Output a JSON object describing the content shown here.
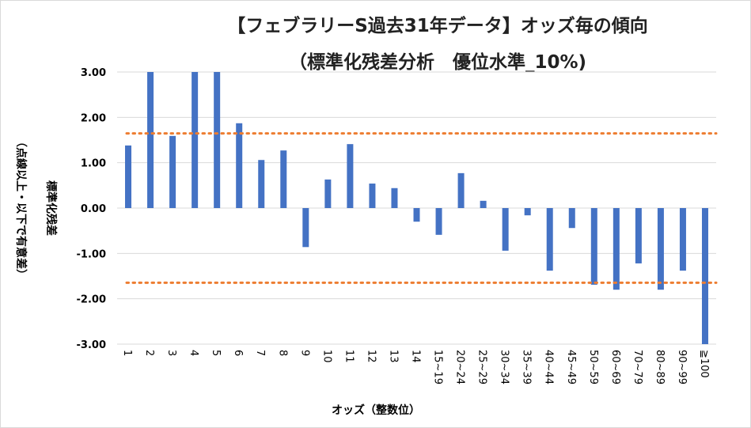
{
  "chart_data": {
    "type": "bar",
    "title": "【フェブラリーS過去31年データ】オッズ毎の傾向",
    "subtitle": "（標準化残差分析　優位水準_10%)",
    "xlabel": "オッズ（整数位）",
    "ylabel": "標準化残差",
    "ylabel_note": "（点線以上・以下で有意差）",
    "ylim": [
      -3,
      3
    ],
    "yticks": [
      "3.00",
      "2.00",
      "1.00",
      "0.00",
      "-1.00",
      "-2.00",
      "-3.00"
    ],
    "ytick_values": [
      3,
      2,
      1,
      0,
      -1,
      -2,
      -3
    ],
    "categories": [
      "1",
      "2",
      "3",
      "4",
      "5",
      "6",
      "7",
      "8",
      "9",
      "10",
      "11",
      "12",
      "13",
      "14",
      "15~19",
      "20~24",
      "25~29",
      "30~34",
      "35~39",
      "40~44",
      "45~49",
      "50~59",
      "60~69",
      "70~79",
      "80~89",
      "90~99",
      "≧100"
    ],
    "values": [
      1.38,
      3.0,
      1.59,
      3.0,
      3.0,
      1.87,
      1.06,
      1.27,
      -0.86,
      0.63,
      1.41,
      0.54,
      0.44,
      -0.3,
      -0.59,
      0.77,
      0.16,
      -0.94,
      -0.16,
      -1.38,
      -0.44,
      -1.69,
      -1.8,
      -1.22,
      -1.8,
      -1.38,
      -3.0
    ],
    "threshold_lines": [
      1.645,
      -1.645
    ],
    "grid": true,
    "colors": {
      "bar": "#4472c4",
      "threshold": "#ed7d31",
      "grid": "#d9d9d9"
    }
  }
}
